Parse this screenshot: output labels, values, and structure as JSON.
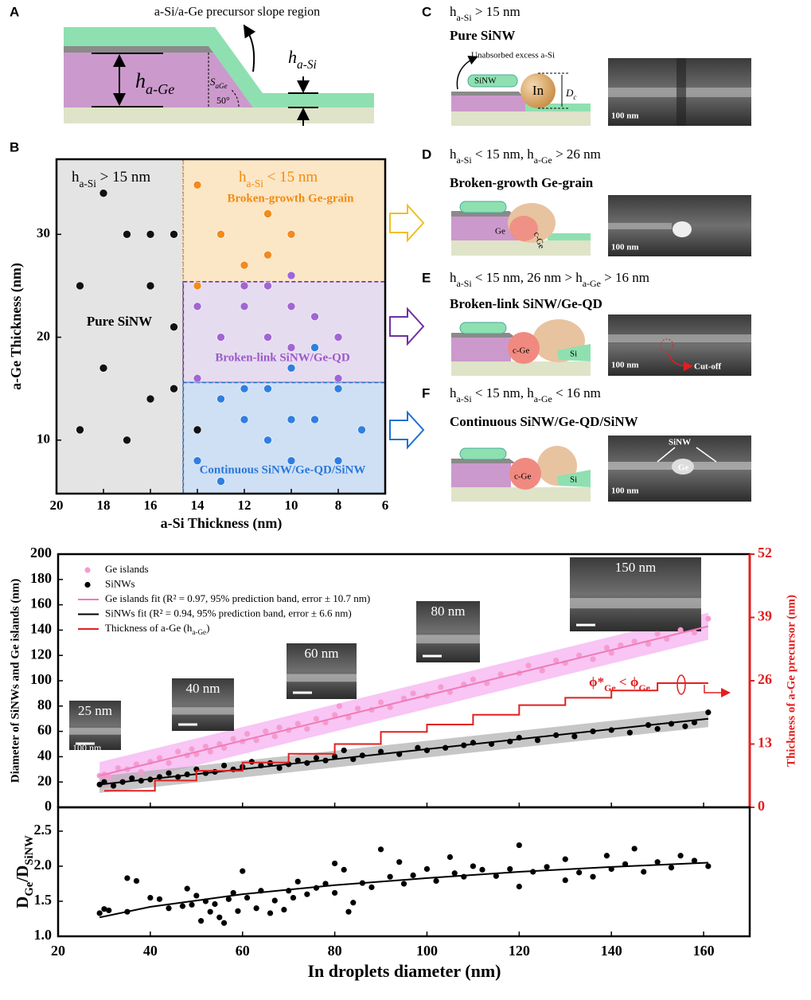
{
  "panels": {
    "A": {
      "letter": "A",
      "title": "a-Si/a-Ge precursor slope region",
      "h_ge": [
        "h",
        "a-Ge"
      ],
      "h_si": [
        "h",
        "a-Si"
      ],
      "slope": [
        "S",
        "aGe"
      ],
      "angle": "50°"
    },
    "B": {
      "letter": "B"
    },
    "C": {
      "letter": "C",
      "heading": [
        "h",
        "a-Si",
        " > 15 nm"
      ],
      "title": "Pure SiNW",
      "excess": "Unabsorbed excess a-Si",
      "sinw": "SiNW",
      "in": "In",
      "dc": [
        "D",
        "c"
      ],
      "scale": "100 nm"
    },
    "D": {
      "letter": "D",
      "heading": [
        "h",
        "a-Si",
        " < 15 nm, h",
        "a-Ge",
        " > 26 nm"
      ],
      "title": "Broken-growth  Ge-grain",
      "ge": "Ge",
      "cge": "c-Ge",
      "scale": "100 nm"
    },
    "E": {
      "letter": "E",
      "heading": [
        "h",
        "a-Si",
        " < 15 nm, 26 nm > h",
        "a-Ge",
        "  > 16 nm"
      ],
      "title": "Broken-link SiNW/Ge-QD",
      "cge": "c-Ge",
      "si": "Si",
      "cutoff": "Cut-off",
      "scale": "100 nm"
    },
    "F": {
      "letter": "F",
      "heading": [
        "h",
        "a-Si",
        " < 15 nm, h",
        "a-Ge",
        "  < 16 nm"
      ],
      "title": "Continuous SiNW/Ge-QD/SiNW",
      "cge": "c-Ge",
      "si": "Si",
      "sinw": "SiNW",
      "ge": "Ge",
      "scale": "100 nm"
    }
  },
  "chart_data": [
    {
      "type": "scatter",
      "xlabel": "a-Si Thickness (nm)",
      "ylabel": "a-Ge Thickness (nm)",
      "xlim": [
        20,
        6
      ],
      "ylim": [
        4.8,
        37.3
      ],
      "xticks": [
        20,
        18,
        16,
        14,
        12,
        10,
        8,
        6
      ],
      "yticks": [
        10,
        20,
        30
      ],
      "headers": [
        [
          "h",
          "a-Si",
          " > 15 nm"
        ],
        [
          "h",
          "a-Si",
          " < 15 nm"
        ]
      ],
      "regions": [
        {
          "label": "Pure SiNW",
          "color": "#e4e4e4",
          "border": "#000000",
          "xrange": [
            null,
            14.6
          ],
          "yrange": [
            null,
            null
          ]
        },
        {
          "label": "Broken-growth Ge-grain",
          "color": "#fbe6c6",
          "border": "#f0a030",
          "xrange": [
            14.6,
            null
          ],
          "yrange": [
            25.4,
            null
          ]
        },
        {
          "label": "Broken-link SiNW/Ge-QD",
          "color": "#e6dcef",
          "border": "#7030a0",
          "xrange": [
            14.6,
            null
          ],
          "yrange": [
            15.6,
            25.4
          ]
        },
        {
          "label": "Continuous  SiNW/Ge-QD/SiNW",
          "color": "#cfe0f4",
          "border": "#2070d0",
          "xrange": [
            14.6,
            null
          ],
          "yrange": [
            null,
            15.6
          ]
        }
      ],
      "series": [
        {
          "color": "#111111",
          "x": [
            18,
            17,
            16,
            15,
            19,
            16,
            15,
            18,
            16,
            15,
            19,
            17,
            14
          ],
          "values": [
            34,
            30,
            30,
            30,
            25,
            25,
            21,
            17,
            14,
            15,
            11,
            10,
            11
          ]
        },
        {
          "color": "#f28a1e",
          "x": [
            14,
            11,
            13,
            10,
            11,
            12,
            14
          ],
          "values": [
            34.8,
            32,
            30,
            30,
            28,
            27,
            25
          ]
        },
        {
          "color": "#a066d3",
          "x": [
            12,
            11,
            10,
            14,
            12,
            10,
            9,
            13,
            11,
            8,
            10,
            14,
            8
          ],
          "values": [
            25,
            25,
            26,
            23,
            23,
            23,
            22,
            20,
            20,
            20,
            19,
            16,
            16
          ]
        },
        {
          "color": "#2f7fe0",
          "x": [
            9,
            10,
            12,
            11,
            8,
            13,
            12,
            10,
            9,
            11,
            7,
            14,
            10,
            8,
            13
          ],
          "values": [
            19,
            17,
            15,
            15,
            15,
            14,
            12,
            12,
            12,
            10,
            11,
            8,
            8,
            8,
            6
          ]
        }
      ]
    },
    {
      "type": "scatter",
      "ylabel": "Diameter of SiNWs and Ge islands (nm)",
      "y2label": "Thickness of a-Ge precursor (nm)",
      "xlim": [
        20,
        170
      ],
      "ylim": [
        0,
        200
      ],
      "yticks": [
        0,
        20,
        40,
        60,
        80,
        100,
        120,
        140,
        160,
        180,
        200
      ],
      "y2lim": [
        0,
        52
      ],
      "y2ticks": [
        0,
        13,
        26,
        39,
        52
      ],
      "annotation": [
        "ϕ*",
        "Ge",
        " < ϕ",
        "Ge"
      ],
      "insets": [
        {
          "label": "25 nm",
          "scale": "100 nm"
        },
        {
          "label": "40 nm"
        },
        {
          "label": "60 nm"
        },
        {
          "label": "80 nm"
        },
        {
          "label": "150 nm"
        }
      ],
      "series": [
        {
          "name": "Ge islands",
          "type": "scatter",
          "color": "#f49ccf",
          "x": [
            29,
            30,
            31,
            33,
            35,
            37,
            38,
            40,
            42,
            44,
            46,
            48,
            49,
            50,
            52,
            53,
            55,
            56,
            58,
            60,
            61,
            63,
            65,
            67,
            68,
            70,
            72,
            74,
            76,
            78,
            80,
            81,
            83,
            85,
            88,
            90,
            92,
            95,
            97,
            100,
            103,
            105,
            108,
            110,
            113,
            116,
            120,
            122,
            125,
            128,
            130,
            133,
            136,
            139,
            140,
            142,
            145,
            148,
            150,
            152,
            155,
            158,
            161
          ],
          "values": [
            25,
            26,
            24,
            31,
            30,
            34,
            28,
            36,
            39,
            35,
            44,
            41,
            46,
            42,
            48,
            44,
            50,
            47,
            54,
            52,
            58,
            53,
            60,
            56,
            63,
            61,
            66,
            62,
            70,
            67,
            73,
            80,
            71,
            78,
            77,
            83,
            79,
            86,
            90,
            88,
            95,
            91,
            97,
            101,
            98,
            105,
            106,
            112,
            108,
            116,
            114,
            120,
            117,
            126,
            122,
            128,
            131,
            129,
            137,
            133,
            140,
            138,
            149
          ]
        },
        {
          "name": "SiNWs",
          "type": "scatter",
          "color": "#000000",
          "x": [
            29,
            30,
            32,
            34,
            36,
            38,
            40,
            42,
            44,
            46,
            48,
            50,
            52,
            54,
            56,
            58,
            60,
            62,
            64,
            66,
            68,
            70,
            72,
            74,
            76,
            78,
            80,
            82,
            84,
            86,
            90,
            94,
            98,
            100,
            104,
            108,
            110,
            114,
            118,
            120,
            124,
            128,
            132,
            136,
            140,
            144,
            148,
            150,
            153,
            156,
            158,
            161
          ],
          "values": [
            18,
            20,
            17,
            20,
            23,
            21,
            22,
            24,
            27,
            24,
            26,
            30,
            27,
            28,
            33,
            30,
            32,
            36,
            33,
            35,
            31,
            34,
            37,
            35,
            39,
            37,
            40,
            45,
            38,
            41,
            44,
            42,
            47,
            45,
            47,
            49,
            51,
            50,
            52,
            55,
            53,
            57,
            56,
            60,
            61,
            59,
            65,
            62,
            66,
            64,
            67,
            75
          ]
        },
        {
          "name": "Ge islands  fit (R² = 0.97, 95% prediction band, error ± 10.7 nm)",
          "type": "line",
          "color": "#f07ab8",
          "band": 10.7,
          "band_color": "#f5a6ee",
          "x": [
            29,
            161
          ],
          "values": [
            25,
            143
          ]
        },
        {
          "name": "SiNWs fit (R² = 0.94,  95% prediction band, error ± 6.6 nm)",
          "type": "line",
          "color": "#000000",
          "band": 6.6,
          "band_color": "#a8a8a8",
          "x": [
            29,
            161
          ],
          "values": [
            18,
            70
          ]
        },
        {
          "name": [
            "Thickness of a-Ge (h",
            "a-Ge",
            ")"
          ],
          "type": "line",
          "axis": "y2",
          "color": "#e02020",
          "x": [
            30,
            41,
            41,
            50,
            50,
            60,
            60,
            70,
            70,
            80,
            80,
            90,
            90,
            100,
            100,
            110,
            110,
            120,
            120,
            130,
            130,
            140,
            140,
            150,
            150,
            161
          ],
          "values": [
            3.4,
            3.4,
            5.5,
            5.5,
            7.5,
            7.5,
            9.2,
            9.2,
            11,
            11,
            13,
            13,
            15.5,
            15.5,
            17,
            17,
            19,
            19,
            21,
            21,
            22.5,
            22.5,
            24,
            24,
            25.5,
            25.5
          ]
        }
      ]
    },
    {
      "type": "scatter",
      "ylabel": [
        "D",
        "Ge",
        "/D",
        "SiNW"
      ],
      "xlabel": "In  droplets diameter  (nm)",
      "xlim": [
        20,
        170
      ],
      "ylim": [
        1.0,
        2.84
      ],
      "xticks": [
        20,
        40,
        60,
        80,
        100,
        120,
        140,
        160
      ],
      "yticks": [
        {
          "value": 1.0,
          "label": "1.0"
        },
        1.5,
        {
          "value": 2.0,
          "label": "2.0"
        },
        2.5
      ],
      "series": [
        {
          "type": "scatter",
          "color": "#000000",
          "x": [
            29,
            30,
            31,
            35,
            35,
            37,
            40,
            42,
            44,
            47,
            48,
            49,
            50,
            51,
            52,
            53,
            54,
            55,
            56,
            57,
            58,
            59,
            60,
            61,
            63,
            64,
            66,
            67,
            69,
            70,
            71,
            72,
            74,
            76,
            78,
            80,
            80,
            82,
            83,
            84,
            86,
            88,
            90,
            92,
            94,
            95,
            97,
            100,
            102,
            105,
            106,
            108,
            110,
            112,
            115,
            118,
            120,
            120,
            123,
            126,
            130,
            130,
            133,
            136,
            139,
            140,
            143,
            145,
            147,
            150,
            153,
            155,
            158,
            161
          ],
          "values": [
            1.33,
            1.39,
            1.37,
            1.35,
            1.83,
            1.79,
            1.55,
            1.53,
            1.4,
            1.43,
            1.68,
            1.45,
            1.58,
            1.22,
            1.5,
            1.35,
            1.46,
            1.27,
            1.19,
            1.53,
            1.62,
            1.36,
            1.93,
            1.55,
            1.4,
            1.65,
            1.33,
            1.51,
            1.38,
            1.65,
            1.55,
            1.78,
            1.6,
            1.69,
            1.75,
            2.04,
            1.62,
            1.95,
            1.35,
            1.48,
            1.76,
            1.7,
            2.24,
            1.85,
            2.06,
            1.75,
            1.87,
            1.96,
            1.79,
            2.13,
            1.9,
            1.85,
            2.0,
            1.95,
            1.86,
            1.96,
            2.3,
            1.71,
            1.92,
            1.99,
            2.1,
            1.8,
            1.91,
            1.85,
            2.15,
            1.96,
            2.03,
            2.25,
            1.92,
            2.06,
            1.98,
            2.15,
            2.08,
            2.0
          ]
        },
        {
          "type": "line",
          "color": "#000000",
          "x": [
            29,
            40,
            60,
            80,
            100,
            120,
            140,
            161
          ],
          "values": [
            1.27,
            1.42,
            1.6,
            1.73,
            1.83,
            1.92,
            1.99,
            2.05
          ]
        }
      ]
    }
  ]
}
